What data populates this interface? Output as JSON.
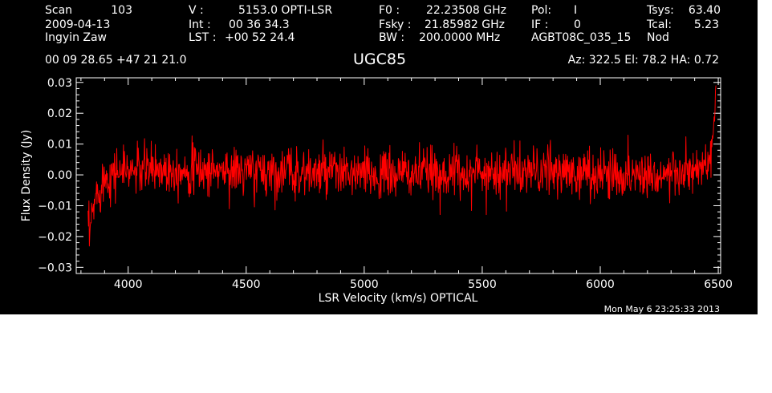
{
  "header": {
    "scan_label": "Scan",
    "scan_value": "103",
    "date": "2009-04-13",
    "observer": "Ingyin Zaw",
    "coords": "00 09 28.65  +47 21 21.0",
    "v_label": "V   :",
    "v_value": "5153.0 OPTI-LSR",
    "int_label": "Int  :",
    "int_value": "00 36 34.3",
    "lst_label": "LST :",
    "lst_value": "+00 52 24.4",
    "f0_label": "F0   :",
    "f0_value": "22.23508 GHz",
    "fsky_label": "Fsky :",
    "fsky_value": "21.85982 GHz",
    "bw_label": "BW   :",
    "bw_value": "200.0000 MHz",
    "pol_label": "Pol:",
    "pol_value": "I",
    "if_label": "IF :",
    "if_value": "0",
    "project": "AGBT08C_035_15",
    "tsys_label": "Tsys:",
    "tsys_value": "63.40",
    "tcal_label": "Tcal:",
    "tcal_value": "5.23",
    "mode": "Nod",
    "az_el_ha": "Az: 322.5   El:  78.2   HA:  0.72",
    "timestamp": "Mon May  6 23:25:33 2013"
  },
  "colors": {
    "background": "#000000",
    "axes": "#ffffff",
    "series": "#ff0000"
  },
  "chart_data": {
    "type": "line",
    "title": "UGC85",
    "xlabel": "LSR Velocity (km/s) OPTICAL",
    "ylabel": "Flux Density (Jy)",
    "xlim": [
      3780,
      6510
    ],
    "ylim": [
      -0.032,
      0.0315
    ],
    "x_ticks": [
      4000,
      4500,
      5000,
      5500,
      6000,
      6500
    ],
    "y_ticks": [
      -0.03,
      -0.02,
      -0.01,
      0.0,
      0.01,
      0.02,
      0.03
    ],
    "y_tick_labels": [
      "−0.03",
      "−0.02",
      "−0.01",
      "0.00",
      "0.01",
      "0.02",
      "0.03"
    ],
    "grid": false,
    "series": [
      {
        "values_x": [
          3830,
          3835,
          3840,
          3845,
          3850,
          3855,
          3860,
          3870,
          3880,
          3890,
          3900,
          3920,
          3950,
          4000,
          4050,
          4100,
          4150,
          4200,
          4300,
          4400,
          4500,
          4600,
          4700,
          4800,
          4900,
          5000,
          5100,
          5200,
          5300,
          5400,
          5500,
          5600,
          5700,
          5800,
          5900,
          6000,
          6100,
          6200,
          6300,
          6400,
          6440,
          6460,
          6470,
          6475,
          6480,
          6485,
          6490
        ],
        "values_y": [
          -0.016,
          -0.021,
          -0.018,
          -0.015,
          -0.012,
          -0.01,
          -0.008,
          -0.006,
          -0.004,
          -0.002,
          -0.001,
          0.0,
          0.001,
          0.0015,
          0.0015,
          0.002,
          0.002,
          0.002,
          0.0015,
          0.0015,
          0.001,
          0.001,
          0.001,
          0.0005,
          0.0005,
          0.0,
          0.0,
          0.0005,
          0.0005,
          0.0005,
          0.001,
          0.001,
          0.001,
          0.001,
          0.0005,
          0.0005,
          0.0,
          0.0005,
          0.0,
          0.001,
          0.002,
          0.004,
          0.007,
          0.01,
          0.014,
          0.018,
          0.028
        ],
        "noise_rms": 0.004
      }
    ]
  }
}
